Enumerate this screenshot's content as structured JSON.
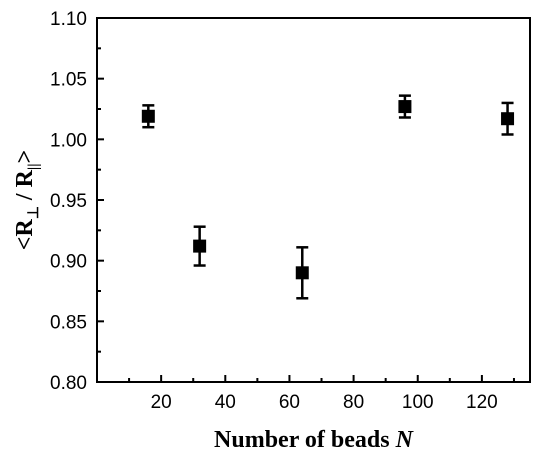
{
  "chart_data": {
    "type": "scatter",
    "title": "",
    "xlabel": "Number of beads ",
    "xlabel_var": "N",
    "ylabel_parts": [
      "<R",
      "⊥",
      " / R",
      "||",
      ">"
    ],
    "xlim": [
      0,
      135
    ],
    "ylim": [
      0.8,
      1.1
    ],
    "xticks": [
      20,
      40,
      60,
      80,
      100,
      120
    ],
    "yticks": [
      0.8,
      0.85,
      0.9,
      0.95,
      1.0,
      1.05,
      1.1
    ],
    "xtick_labels": [
      "20",
      "40",
      "60",
      "80",
      "100",
      "120"
    ],
    "ytick_labels": [
      "0.80",
      "0.85",
      "0.90",
      "0.95",
      "1.00",
      "1.05",
      "1.10"
    ],
    "grid": false,
    "series": [
      {
        "marker": "square",
        "color": "#000000",
        "points": [
          {
            "x": 16,
            "y": 1.019,
            "err": 0.009
          },
          {
            "x": 32,
            "y": 0.912,
            "err": 0.016
          },
          {
            "x": 64,
            "y": 0.89,
            "err": 0.021
          },
          {
            "x": 96,
            "y": 1.027,
            "err": 0.009
          },
          {
            "x": 128,
            "y": 1.017,
            "err": 0.013
          }
        ]
      }
    ]
  }
}
